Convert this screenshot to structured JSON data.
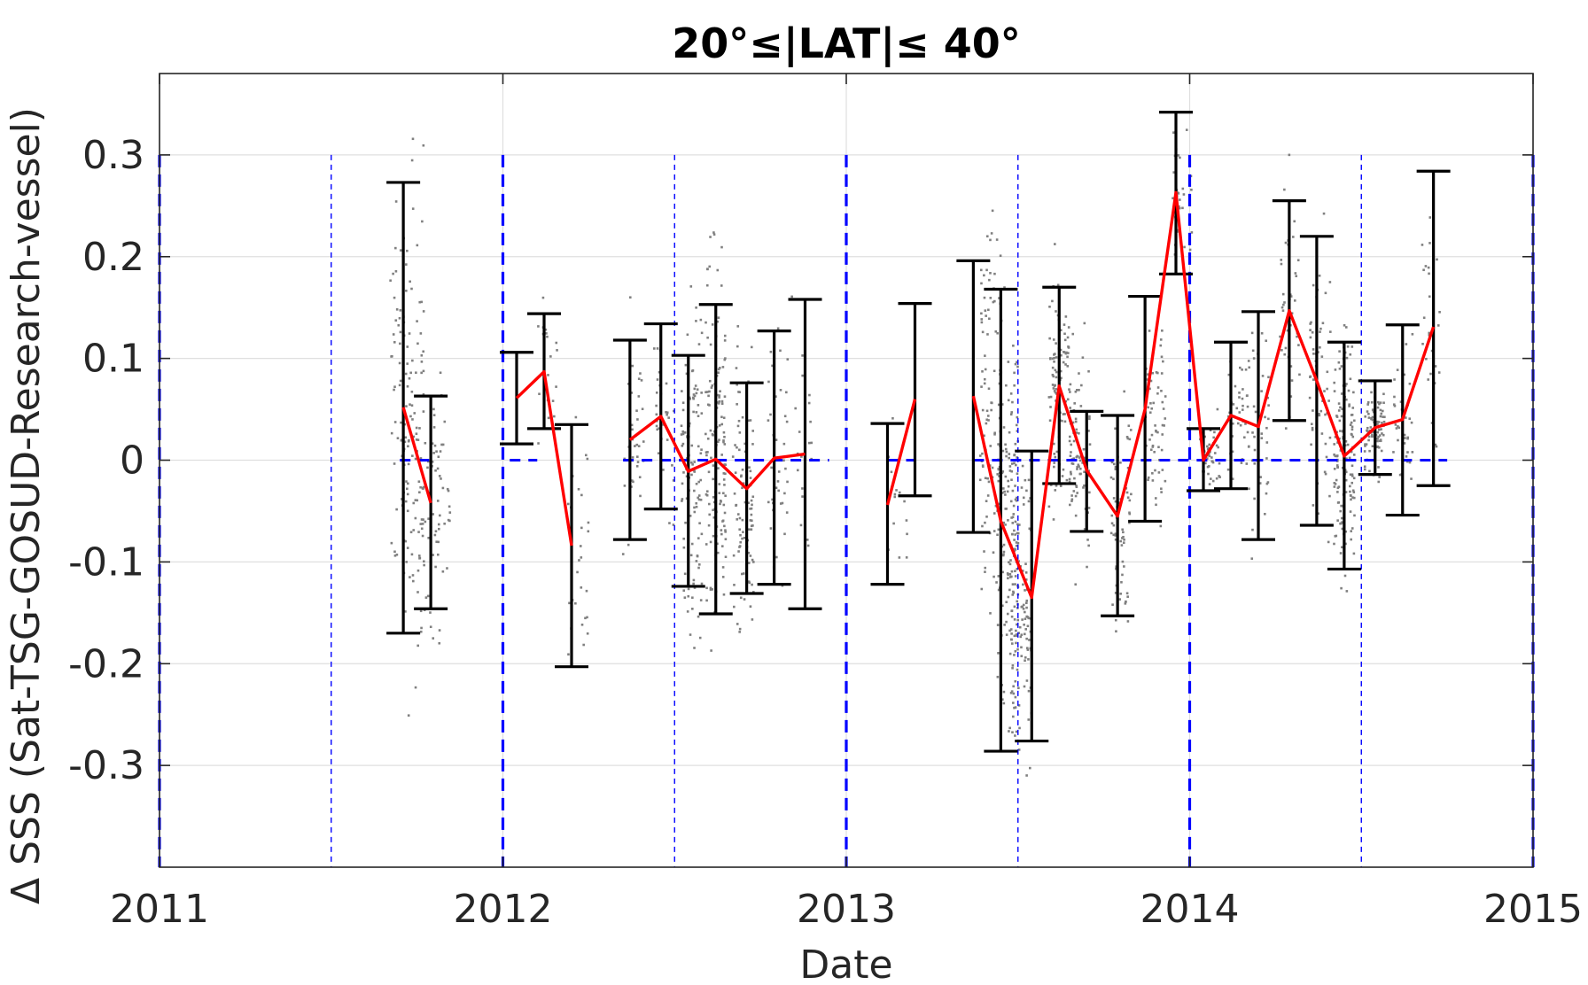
{
  "chart_data": {
    "type": "scatter",
    "title": "20°≤|LAT|≤ 40°",
    "xlabel": "Date",
    "ylabel": "Δ SSS (Sat-TSG-GOSUD-Research-vessel)",
    "xlim": [
      2011.0,
      2015.0
    ],
    "ylim": [
      -0.4,
      0.38
    ],
    "x_ticks": [
      2011,
      2012,
      2013,
      2014,
      2015
    ],
    "x_tick_labels": [
      "2011",
      "2012",
      "2013",
      "2014",
      "2015"
    ],
    "y_ticks": [
      -0.3,
      -0.2,
      -0.1,
      0,
      0.1,
      0.2,
      0.3
    ],
    "y_tick_labels": [
      "-0.3",
      "-0.2",
      "-0.1",
      "0",
      "0.1",
      "0.2",
      "0.3"
    ],
    "grid": true,
    "legend": "none",
    "colors": {
      "points": "#808080",
      "mean_line": "#ff0000",
      "error_bars": "#000000",
      "reference_lines": "#0000ff"
    },
    "zero_line_segments": [
      [
        2011.7,
        2011.8
      ],
      [
        2012.02,
        2012.1
      ],
      [
        2012.35,
        2012.95
      ],
      [
        2013.12,
        2013.2
      ],
      [
        2013.37,
        2014.75
      ]
    ],
    "year_lines": [
      2011.0,
      2012.0,
      2013.0,
      2014.0,
      2015.0
    ],
    "half_year_lines": [
      2011.5,
      2012.5,
      2013.5,
      2014.5
    ],
    "scatter_clusters": [
      {
        "x": 2011.7,
        "center": 0.05,
        "spread": 0.22,
        "density": 60
      },
      {
        "x": 2011.74,
        "center": 0.03,
        "spread": 0.3,
        "density": 90
      },
      {
        "x": 2011.79,
        "center": -0.04,
        "spread": 0.15,
        "density": 40
      },
      {
        "x": 2011.82,
        "center": -0.03,
        "spread": 0.2,
        "density": 25
      },
      {
        "x": 2012.13,
        "center": 0.09,
        "spread": 0.08,
        "density": 20
      },
      {
        "x": 2012.22,
        "center": -0.08,
        "spread": 0.18,
        "density": 30
      },
      {
        "x": 2012.38,
        "center": 0.02,
        "spread": 0.13,
        "density": 35
      },
      {
        "x": 2012.47,
        "center": 0.04,
        "spread": 0.1,
        "density": 30
      },
      {
        "x": 2012.55,
        "center": -0.01,
        "spread": 0.2,
        "density": 110
      },
      {
        "x": 2012.62,
        "center": 0.0,
        "spread": 0.22,
        "density": 140
      },
      {
        "x": 2012.7,
        "center": -0.03,
        "spread": 0.18,
        "density": 90
      },
      {
        "x": 2012.8,
        "center": 0.0,
        "spread": 0.13,
        "density": 40
      },
      {
        "x": 2012.87,
        "center": 0.01,
        "spread": 0.15,
        "density": 20
      },
      {
        "x": 2013.15,
        "center": -0.04,
        "spread": 0.09,
        "density": 15
      },
      {
        "x": 2013.42,
        "center": 0.06,
        "spread": 0.22,
        "density": 90
      },
      {
        "x": 2013.47,
        "center": -0.06,
        "spread": 0.25,
        "density": 150
      },
      {
        "x": 2013.51,
        "center": -0.14,
        "spread": 0.2,
        "density": 120
      },
      {
        "x": 2013.62,
        "center": 0.07,
        "spread": 0.12,
        "density": 90
      },
      {
        "x": 2013.68,
        "center": 0.0,
        "spread": 0.12,
        "density": 90
      },
      {
        "x": 2013.8,
        "center": -0.05,
        "spread": 0.12,
        "density": 70
      },
      {
        "x": 2013.9,
        "center": 0.05,
        "spread": 0.12,
        "density": 60
      },
      {
        "x": 2013.98,
        "center": 0.26,
        "spread": 0.08,
        "density": 30
      },
      {
        "x": 2014.06,
        "center": 0.0,
        "spread": 0.05,
        "density": 45
      },
      {
        "x": 2014.14,
        "center": 0.04,
        "spread": 0.08,
        "density": 40
      },
      {
        "x": 2014.2,
        "center": 0.03,
        "spread": 0.12,
        "density": 40
      },
      {
        "x": 2014.29,
        "center": 0.14,
        "spread": 0.14,
        "density": 40
      },
      {
        "x": 2014.38,
        "center": 0.07,
        "spread": 0.15,
        "density": 60
      },
      {
        "x": 2014.45,
        "center": 0.01,
        "spread": 0.15,
        "density": 140
      },
      {
        "x": 2014.54,
        "center": 0.03,
        "spread": 0.05,
        "density": 90
      },
      {
        "x": 2014.62,
        "center": 0.04,
        "spread": 0.09,
        "density": 35
      },
      {
        "x": 2014.7,
        "center": 0.13,
        "spread": 0.15,
        "density": 25
      }
    ],
    "series": [
      {
        "mean_segments": [
          [
            [
              2011.71,
              0.052
            ],
            [
              2011.79,
              -0.042
            ]
          ],
          [
            [
              2012.04,
              0.061
            ],
            [
              2012.12,
              0.087
            ],
            [
              2012.2,
              -0.084
            ]
          ],
          [
            [
              2012.37,
              0.02
            ],
            [
              2012.46,
              0.043
            ],
            [
              2012.54,
              -0.011
            ],
            [
              2012.62,
              0.001
            ],
            [
              2012.71,
              -0.028
            ],
            [
              2012.79,
              0.002
            ],
            [
              2012.88,
              0.006
            ]
          ],
          [
            [
              2013.12,
              -0.044
            ],
            [
              2013.2,
              0.06
            ]
          ],
          [
            [
              2013.37,
              0.063
            ],
            [
              2013.45,
              -0.06
            ],
            [
              2013.54,
              -0.135
            ],
            [
              2013.62,
              0.073
            ],
            [
              2013.7,
              -0.01
            ],
            [
              2013.79,
              -0.055
            ],
            [
              2013.87,
              0.05
            ],
            [
              2013.96,
              0.263
            ],
            [
              2014.04,
              0.0
            ],
            [
              2014.12,
              0.044
            ],
            [
              2014.2,
              0.033
            ],
            [
              2014.29,
              0.147
            ],
            [
              2014.37,
              0.078
            ],
            [
              2014.45,
              0.004
            ],
            [
              2014.54,
              0.032
            ],
            [
              2014.62,
              0.04
            ],
            [
              2014.71,
              0.131
            ]
          ]
        ],
        "error_bars": [
          {
            "x": 2011.71,
            "low": -0.17,
            "high": 0.273
          },
          {
            "x": 2011.79,
            "low": -0.146,
            "high": 0.063
          },
          {
            "x": 2012.04,
            "low": 0.016,
            "high": 0.106
          },
          {
            "x": 2012.12,
            "low": 0.031,
            "high": 0.144
          },
          {
            "x": 2012.2,
            "low": -0.203,
            "high": 0.035
          },
          {
            "x": 2012.37,
            "low": -0.078,
            "high": 0.118
          },
          {
            "x": 2012.46,
            "low": -0.048,
            "high": 0.134
          },
          {
            "x": 2012.54,
            "low": -0.124,
            "high": 0.103
          },
          {
            "x": 2012.62,
            "low": -0.151,
            "high": 0.153
          },
          {
            "x": 2012.71,
            "low": -0.131,
            "high": 0.076
          },
          {
            "x": 2012.79,
            "low": -0.122,
            "high": 0.127
          },
          {
            "x": 2012.88,
            "low": -0.146,
            "high": 0.158
          },
          {
            "x": 2013.12,
            "low": -0.122,
            "high": 0.036
          },
          {
            "x": 2013.2,
            "low": -0.035,
            "high": 0.154
          },
          {
            "x": 2013.37,
            "low": -0.071,
            "high": 0.196
          },
          {
            "x": 2013.45,
            "low": -0.286,
            "high": 0.168
          },
          {
            "x": 2013.54,
            "low": -0.276,
            "high": 0.009
          },
          {
            "x": 2013.62,
            "low": -0.023,
            "high": 0.17
          },
          {
            "x": 2013.7,
            "low": -0.07,
            "high": 0.048
          },
          {
            "x": 2013.79,
            "low": -0.153,
            "high": 0.044
          },
          {
            "x": 2013.87,
            "low": -0.06,
            "high": 0.161
          },
          {
            "x": 2013.96,
            "low": 0.183,
            "high": 0.342
          },
          {
            "x": 2014.04,
            "low": -0.03,
            "high": 0.031
          },
          {
            "x": 2014.12,
            "low": -0.028,
            "high": 0.116
          },
          {
            "x": 2014.2,
            "low": -0.078,
            "high": 0.146
          },
          {
            "x": 2014.29,
            "low": 0.039,
            "high": 0.255
          },
          {
            "x": 2014.37,
            "low": -0.064,
            "high": 0.22
          },
          {
            "x": 2014.45,
            "low": -0.107,
            "high": 0.116
          },
          {
            "x": 2014.54,
            "low": -0.014,
            "high": 0.078
          },
          {
            "x": 2014.62,
            "low": -0.054,
            "high": 0.133
          },
          {
            "x": 2014.71,
            "low": -0.025,
            "high": 0.284
          }
        ]
      }
    ]
  }
}
